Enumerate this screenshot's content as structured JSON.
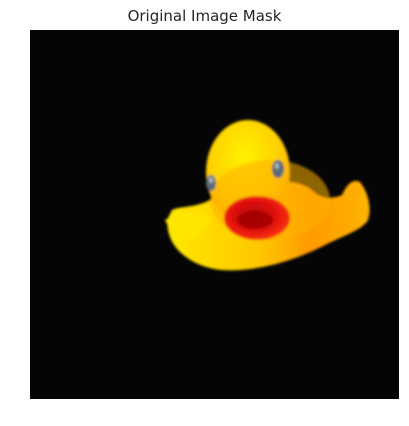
{
  "figure": {
    "title": "Original Image Mask"
  },
  "image": {
    "subject": "rubber-duck",
    "colors": {
      "background": "#050505",
      "duck_yellow": "#ffe000",
      "duck_orange": "#ff8a00",
      "beak_red": "#e81010",
      "beak_dark": "#a00000",
      "eye": "#5a6b78"
    }
  }
}
